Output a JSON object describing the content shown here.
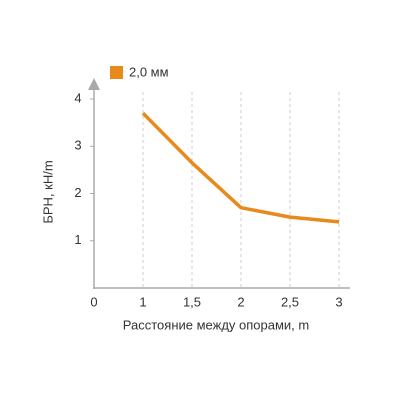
{
  "chart_data": {
    "type": "line",
    "x_label": "Расстояние между опорами, m",
    "y_label": "БРН, кН/m",
    "categories": [
      "0",
      "1",
      "1,5",
      "2",
      "2,5",
      "3"
    ],
    "series": [
      {
        "name": "2,0 мм",
        "color": "#e8891c",
        "values": [
          null,
          3.7,
          2.65,
          1.7,
          1.5,
          1.4
        ]
      }
    ],
    "ylim": [
      0,
      4
    ],
    "yticks": [
      1,
      2,
      3,
      4
    ],
    "grid": true
  }
}
